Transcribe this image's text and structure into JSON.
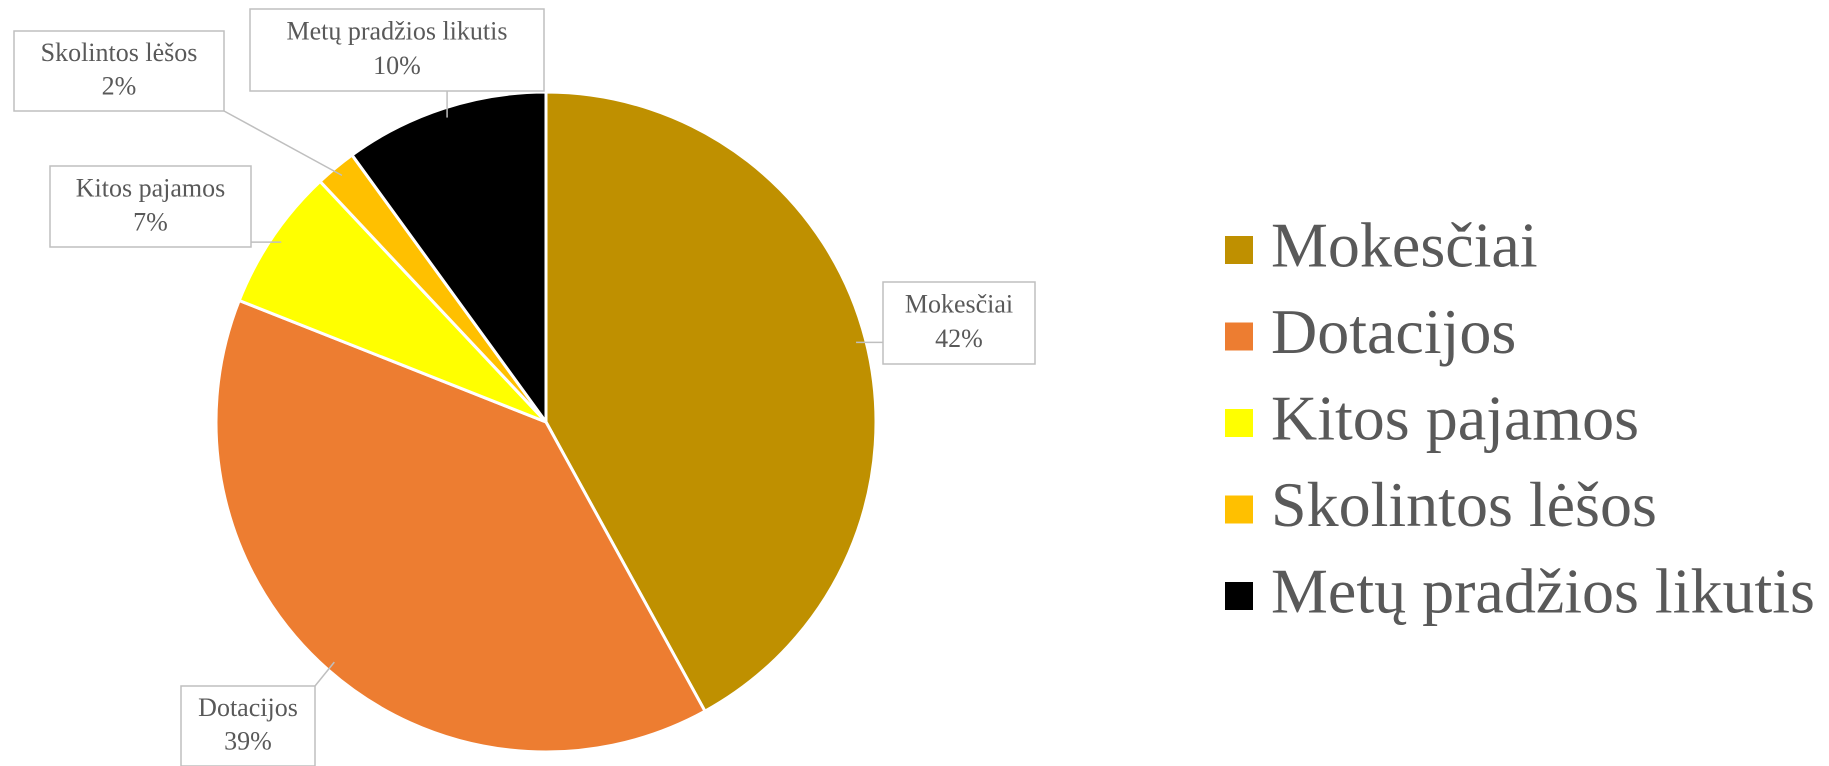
{
  "chart_data": {
    "type": "pie",
    "categories": [
      "Mokesčiai",
      "Dotacijos",
      "Kitos pajamos",
      "Skolintos lėšos",
      "Metų pradžios likutis"
    ],
    "values": [
      42,
      39,
      7,
      2,
      10
    ],
    "value_labels": [
      "42%",
      "39%",
      "7%",
      "2%",
      "10%"
    ],
    "colors": [
      "#bf9000",
      "#ed7d31",
      "#ffff00",
      "#ffc000",
      "#000000"
    ],
    "legend": "right"
  }
}
